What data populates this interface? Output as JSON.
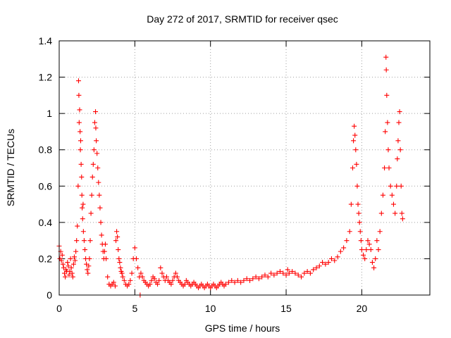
{
  "chart_data": {
    "type": "scatter",
    "title": "Day 272 of 2017, SRMTID for receiver qsec",
    "xlabel": "GPS time / hours",
    "ylabel": "SRMTID / TECUs",
    "xlim": [
      0,
      24.5
    ],
    "ylim": [
      0,
      1.4
    ],
    "xticks": [
      0,
      5,
      10,
      15,
      20
    ],
    "yticks": [
      0,
      0.2,
      0.4,
      0.6,
      0.8,
      1,
      1.2,
      1.4
    ],
    "xtick_labels": [
      "0",
      "5",
      "10",
      "15",
      "20"
    ],
    "ytick_labels": [
      "0",
      "0.2",
      "0.4",
      "0.6",
      "0.8",
      "1",
      "1.2",
      "1.4"
    ],
    "grid": true,
    "marker": "+",
    "color": "#ff0000",
    "series": [
      {
        "name": "SRMTID",
        "points": [
          [
            0.0,
            0.27
          ],
          [
            0.05,
            0.2
          ],
          [
            0.1,
            0.24
          ],
          [
            0.15,
            0.19
          ],
          [
            0.2,
            0.22
          ],
          [
            0.25,
            0.17
          ],
          [
            0.3,
            0.15
          ],
          [
            0.35,
            0.12
          ],
          [
            0.4,
            0.1
          ],
          [
            0.45,
            0.14
          ],
          [
            0.5,
            0.13
          ],
          [
            0.55,
            0.18
          ],
          [
            0.6,
            0.16
          ],
          [
            0.65,
            0.11
          ],
          [
            0.7,
            0.13
          ],
          [
            0.75,
            0.2
          ],
          [
            0.8,
            0.15
          ],
          [
            0.85,
            0.12
          ],
          [
            0.9,
            0.1
          ],
          [
            0.95,
            0.17
          ],
          [
            1.0,
            0.21
          ],
          [
            1.05,
            0.19
          ],
          [
            1.1,
            0.24
          ],
          [
            1.15,
            0.3
          ],
          [
            1.2,
            0.38
          ],
          [
            1.25,
            0.6
          ],
          [
            1.28,
            1.18
          ],
          [
            1.3,
            1.1
          ],
          [
            1.32,
            0.95
          ],
          [
            1.35,
            1.02
          ],
          [
            1.38,
            0.9
          ],
          [
            1.4,
            0.8
          ],
          [
            1.42,
            0.85
          ],
          [
            1.45,
            0.72
          ],
          [
            1.48,
            0.65
          ],
          [
            1.5,
            0.55
          ],
          [
            1.52,
            0.48
          ],
          [
            1.55,
            0.42
          ],
          [
            1.58,
            0.5
          ],
          [
            1.6,
            0.35
          ],
          [
            1.65,
            0.3
          ],
          [
            1.7,
            0.25
          ],
          [
            1.75,
            0.2
          ],
          [
            1.8,
            0.17
          ],
          [
            1.85,
            0.14
          ],
          [
            1.9,
            0.12
          ],
          [
            1.95,
            0.16
          ],
          [
            2.0,
            0.2
          ],
          [
            2.05,
            0.3
          ],
          [
            2.1,
            0.45
          ],
          [
            2.15,
            0.55
          ],
          [
            2.2,
            0.65
          ],
          [
            2.25,
            0.72
          ],
          [
            2.3,
            0.8
          ],
          [
            2.35,
            0.95
          ],
          [
            2.4,
            1.01
          ],
          [
            2.42,
            0.92
          ],
          [
            2.45,
            0.85
          ],
          [
            2.5,
            0.78
          ],
          [
            2.55,
            0.7
          ],
          [
            2.6,
            0.62
          ],
          [
            2.65,
            0.55
          ],
          [
            2.7,
            0.48
          ],
          [
            2.75,
            0.4
          ],
          [
            2.8,
            0.33
          ],
          [
            2.85,
            0.28
          ],
          [
            2.9,
            0.24
          ],
          [
            2.95,
            0.2
          ],
          [
            3.0,
            0.24
          ],
          [
            3.05,
            0.28
          ],
          [
            3.1,
            0.2
          ],
          [
            3.2,
            0.1
          ],
          [
            3.3,
            0.06
          ],
          [
            3.4,
            0.05
          ],
          [
            3.5,
            0.06
          ],
          [
            3.6,
            0.07
          ],
          [
            3.7,
            0.05
          ],
          [
            3.75,
            0.3
          ],
          [
            3.8,
            0.35
          ],
          [
            3.85,
            0.32
          ],
          [
            3.9,
            0.25
          ],
          [
            3.95,
            0.2
          ],
          [
            4.0,
            0.18
          ],
          [
            4.05,
            0.15
          ],
          [
            4.1,
            0.13
          ],
          [
            4.15,
            0.12
          ],
          [
            4.2,
            0.1
          ],
          [
            4.3,
            0.08
          ],
          [
            4.4,
            0.06
          ],
          [
            4.5,
            0.05
          ],
          [
            4.6,
            0.06
          ],
          [
            4.7,
            0.08
          ],
          [
            4.8,
            0.12
          ],
          [
            4.9,
            0.2
          ],
          [
            5.0,
            0.26
          ],
          [
            5.1,
            0.2
          ],
          [
            5.2,
            0.15
          ],
          [
            5.3,
            0.1
          ],
          [
            5.35,
            0.0
          ],
          [
            5.4,
            0.12
          ],
          [
            5.5,
            0.1
          ],
          [
            5.6,
            0.08
          ],
          [
            5.7,
            0.07
          ],
          [
            5.8,
            0.06
          ],
          [
            5.9,
            0.05
          ],
          [
            6.0,
            0.06
          ],
          [
            6.1,
            0.08
          ],
          [
            6.2,
            0.1
          ],
          [
            6.3,
            0.09
          ],
          [
            6.4,
            0.07
          ],
          [
            6.5,
            0.06
          ],
          [
            6.6,
            0.08
          ],
          [
            6.7,
            0.15
          ],
          [
            6.8,
            0.12
          ],
          [
            6.9,
            0.1
          ],
          [
            7.0,
            0.08
          ],
          [
            7.1,
            0.1
          ],
          [
            7.2,
            0.08
          ],
          [
            7.3,
            0.07
          ],
          [
            7.4,
            0.06
          ],
          [
            7.5,
            0.08
          ],
          [
            7.6,
            0.1
          ],
          [
            7.7,
            0.12
          ],
          [
            7.8,
            0.1
          ],
          [
            7.9,
            0.08
          ],
          [
            8.0,
            0.07
          ],
          [
            8.1,
            0.06
          ],
          [
            8.2,
            0.05
          ],
          [
            8.3,
            0.06
          ],
          [
            8.4,
            0.08
          ],
          [
            8.5,
            0.07
          ],
          [
            8.6,
            0.06
          ],
          [
            8.7,
            0.05
          ],
          [
            8.8,
            0.06
          ],
          [
            8.9,
            0.07
          ],
          [
            9.0,
            0.06
          ],
          [
            9.1,
            0.05
          ],
          [
            9.2,
            0.04
          ],
          [
            9.3,
            0.05
          ],
          [
            9.4,
            0.06
          ],
          [
            9.5,
            0.05
          ],
          [
            9.6,
            0.04
          ],
          [
            9.7,
            0.05
          ],
          [
            9.8,
            0.06
          ],
          [
            9.9,
            0.05
          ],
          [
            10.0,
            0.04
          ],
          [
            10.1,
            0.05
          ],
          [
            10.2,
            0.06
          ],
          [
            10.3,
            0.05
          ],
          [
            10.4,
            0.04
          ],
          [
            10.5,
            0.05
          ],
          [
            10.6,
            0.06
          ],
          [
            10.7,
            0.07
          ],
          [
            10.8,
            0.06
          ],
          [
            10.9,
            0.05
          ],
          [
            11.0,
            0.06
          ],
          [
            11.2,
            0.07
          ],
          [
            11.4,
            0.08
          ],
          [
            11.6,
            0.07
          ],
          [
            11.8,
            0.08
          ],
          [
            12.0,
            0.07
          ],
          [
            12.2,
            0.08
          ],
          [
            12.4,
            0.09
          ],
          [
            12.6,
            0.08
          ],
          [
            12.8,
            0.09
          ],
          [
            13.0,
            0.1
          ],
          [
            13.2,
            0.09
          ],
          [
            13.4,
            0.1
          ],
          [
            13.6,
            0.11
          ],
          [
            13.8,
            0.1
          ],
          [
            14.0,
            0.12
          ],
          [
            14.2,
            0.11
          ],
          [
            14.4,
            0.12
          ],
          [
            14.6,
            0.13
          ],
          [
            14.8,
            0.12
          ],
          [
            15.0,
            0.11
          ],
          [
            15.1,
            0.14
          ],
          [
            15.2,
            0.12
          ],
          [
            15.4,
            0.13
          ],
          [
            15.6,
            0.12
          ],
          [
            15.8,
            0.11
          ],
          [
            16.0,
            0.1
          ],
          [
            16.2,
            0.12
          ],
          [
            16.4,
            0.13
          ],
          [
            16.6,
            0.12
          ],
          [
            16.8,
            0.14
          ],
          [
            17.0,
            0.15
          ],
          [
            17.2,
            0.16
          ],
          [
            17.4,
            0.18
          ],
          [
            17.6,
            0.17
          ],
          [
            17.8,
            0.18
          ],
          [
            18.0,
            0.2
          ],
          [
            18.2,
            0.19
          ],
          [
            18.4,
            0.21
          ],
          [
            18.6,
            0.24
          ],
          [
            18.8,
            0.26
          ],
          [
            19.0,
            0.3
          ],
          [
            19.2,
            0.35
          ],
          [
            19.3,
            0.5
          ],
          [
            19.4,
            0.7
          ],
          [
            19.45,
            0.85
          ],
          [
            19.5,
            0.93
          ],
          [
            19.55,
            0.88
          ],
          [
            19.6,
            0.8
          ],
          [
            19.65,
            0.72
          ],
          [
            19.7,
            0.6
          ],
          [
            19.75,
            0.5
          ],
          [
            19.8,
            0.45
          ],
          [
            19.85,
            0.4
          ],
          [
            19.9,
            0.35
          ],
          [
            19.95,
            0.3
          ],
          [
            20.0,
            0.25
          ],
          [
            20.1,
            0.22
          ],
          [
            20.2,
            0.2
          ],
          [
            20.3,
            0.25
          ],
          [
            20.4,
            0.3
          ],
          [
            20.5,
            0.28
          ],
          [
            20.6,
            0.25
          ],
          [
            20.7,
            0.18
          ],
          [
            20.8,
            0.15
          ],
          [
            20.9,
            0.2
          ],
          [
            21.0,
            0.3
          ],
          [
            21.1,
            0.25
          ],
          [
            21.2,
            0.35
          ],
          [
            21.3,
            0.45
          ],
          [
            21.4,
            0.55
          ],
          [
            21.5,
            0.7
          ],
          [
            21.55,
            0.9
          ],
          [
            21.6,
            1.31
          ],
          [
            21.62,
            1.24
          ],
          [
            21.65,
            1.1
          ],
          [
            21.7,
            0.95
          ],
          [
            21.75,
            0.8
          ],
          [
            21.8,
            0.7
          ],
          [
            21.9,
            0.6
          ],
          [
            22.0,
            0.55
          ],
          [
            22.1,
            0.5
          ],
          [
            22.2,
            0.45
          ],
          [
            22.3,
            0.6
          ],
          [
            22.35,
            0.75
          ],
          [
            22.4,
            0.85
          ],
          [
            22.45,
            0.95
          ],
          [
            22.5,
            1.01
          ],
          [
            22.55,
            0.8
          ],
          [
            22.6,
            0.6
          ],
          [
            22.65,
            0.45
          ],
          [
            22.7,
            0.42
          ]
        ]
      }
    ]
  }
}
